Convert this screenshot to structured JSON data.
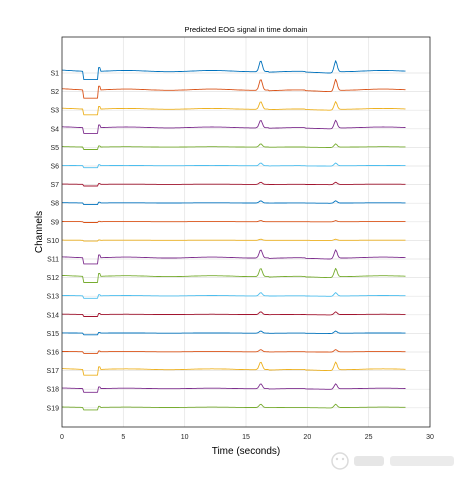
{
  "chart_data": {
    "type": "line",
    "title": "Predicted EOG signal in time domain",
    "xlabel": "Time (seconds)",
    "ylabel": "Channels",
    "xlim": [
      0,
      30
    ],
    "x_ticks": [
      "0",
      "5",
      "10",
      "15",
      "20",
      "25",
      "30"
    ],
    "grid": true,
    "categories": [
      "S1",
      "S2",
      "S3",
      "S4",
      "S5",
      "S6",
      "S7",
      "S8",
      "S9",
      "S10",
      "S11",
      "S12",
      "S13",
      "S14",
      "S15",
      "S16",
      "S17",
      "S18",
      "S19"
    ],
    "colors": [
      "#0072BD",
      "#D95319",
      "#EDB120",
      "#7E2F8E",
      "#77AC30",
      "#4DBEEE",
      "#A2142F",
      "#0072BD",
      "#D95319",
      "#EDB120",
      "#7E2F8E",
      "#77AC30",
      "#4DBEEE",
      "#A2142F",
      "#0072BD",
      "#D95319",
      "#EDB120",
      "#7E2F8E",
      "#77AC30"
    ],
    "amplitude": [
      1.0,
      1.0,
      0.7,
      0.7,
      0.3,
      0.25,
      0.2,
      0.2,
      0.1,
      0.1,
      0.75,
      0.75,
      0.3,
      0.25,
      0.2,
      0.2,
      0.7,
      0.45,
      0.3
    ],
    "events": {
      "dip_start_s": 1.7,
      "dip_end_s": 2.9,
      "spike_times_s": [
        16.2,
        22.3
      ],
      "signal_end_s": 28.0
    }
  }
}
